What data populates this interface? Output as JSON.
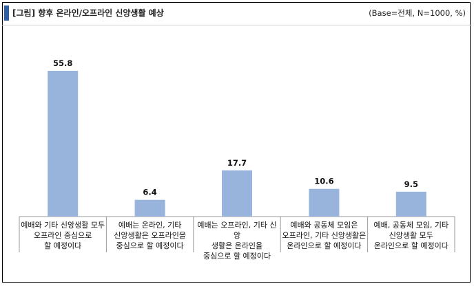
{
  "header": {
    "title": "[그림] 향후 온라인/오프라인 신앙생활 예상",
    "base_note": "(Base=전체, N=1000, %)"
  },
  "colors": {
    "bar": "#98b4dc",
    "accent": "#2e5fa3"
  },
  "chart_data": {
    "type": "bar",
    "title": "[그림] 향후 온라인/오프라인 신앙생활 예상",
    "categories": [
      "예배와 기타 신앙생활 모두\n오프라인 중심으로\n할 예정이다",
      "예배는 온라인, 기타\n신앙생활은 오프라인을\n중심으로 할 예정이다",
      "예배는 오프라인, 기타 신앙\n생활은 온라인을\n중심으로 할 예정이다",
      "예배와 공동체 모임은\n오프라인, 기타 신앙생활은\n온라인으로 할 예정이다",
      "예배, 공동체 모임, 기타\n신앙생활 모두\n온라인으로 할 예정이다"
    ],
    "values": [
      55.8,
      6.4,
      17.7,
      10.6,
      9.5
    ],
    "value_labels": [
      "55.8",
      "6.4",
      "17.7",
      "10.6",
      "9.5"
    ],
    "ylim": [
      0,
      60
    ],
    "grid": false,
    "legend": "none"
  }
}
